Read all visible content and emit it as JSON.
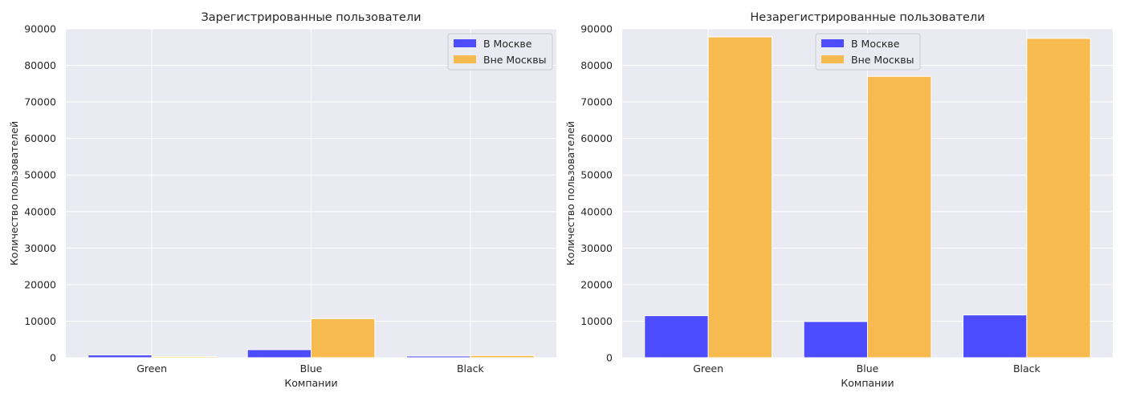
{
  "chart_data": [
    {
      "type": "bar",
      "title": "Зарегистрированные пользователи",
      "xlabel": "Компании",
      "ylabel": "Количество пользователей",
      "categories": [
        "Green",
        "Blue",
        "Black"
      ],
      "ylim": [
        0,
        90000
      ],
      "yticks": [
        "0",
        "10000",
        "20000",
        "30000",
        "40000",
        "50000",
        "60000",
        "70000",
        "80000",
        "90000"
      ],
      "series": [
        {
          "name": "В Москве",
          "color": "#4545FF",
          "values": [
            750,
            2200,
            450
          ]
        },
        {
          "name": "Вне Москвы",
          "color": "#F7B744",
          "values": [
            300,
            10700,
            600
          ]
        }
      ],
      "legend": "top-right",
      "grid": true
    },
    {
      "type": "bar",
      "title": "Незарегистрированные пользователи",
      "xlabel": "Компании",
      "ylabel": "Количество пользователей",
      "categories": [
        "Green",
        "Blue",
        "Black"
      ],
      "ylim": [
        0,
        90000
      ],
      "yticks": [
        "0",
        "10000",
        "20000",
        "30000",
        "40000",
        "50000",
        "60000",
        "70000",
        "80000",
        "90000"
      ],
      "series": [
        {
          "name": "В Москве",
          "color": "#4545FF",
          "values": [
            11500,
            9900,
            11700
          ]
        },
        {
          "name": "Вне Москвы",
          "color": "#F7B744",
          "values": [
            87800,
            77000,
            87400
          ]
        }
      ],
      "legend": "top-center",
      "grid": true
    }
  ]
}
